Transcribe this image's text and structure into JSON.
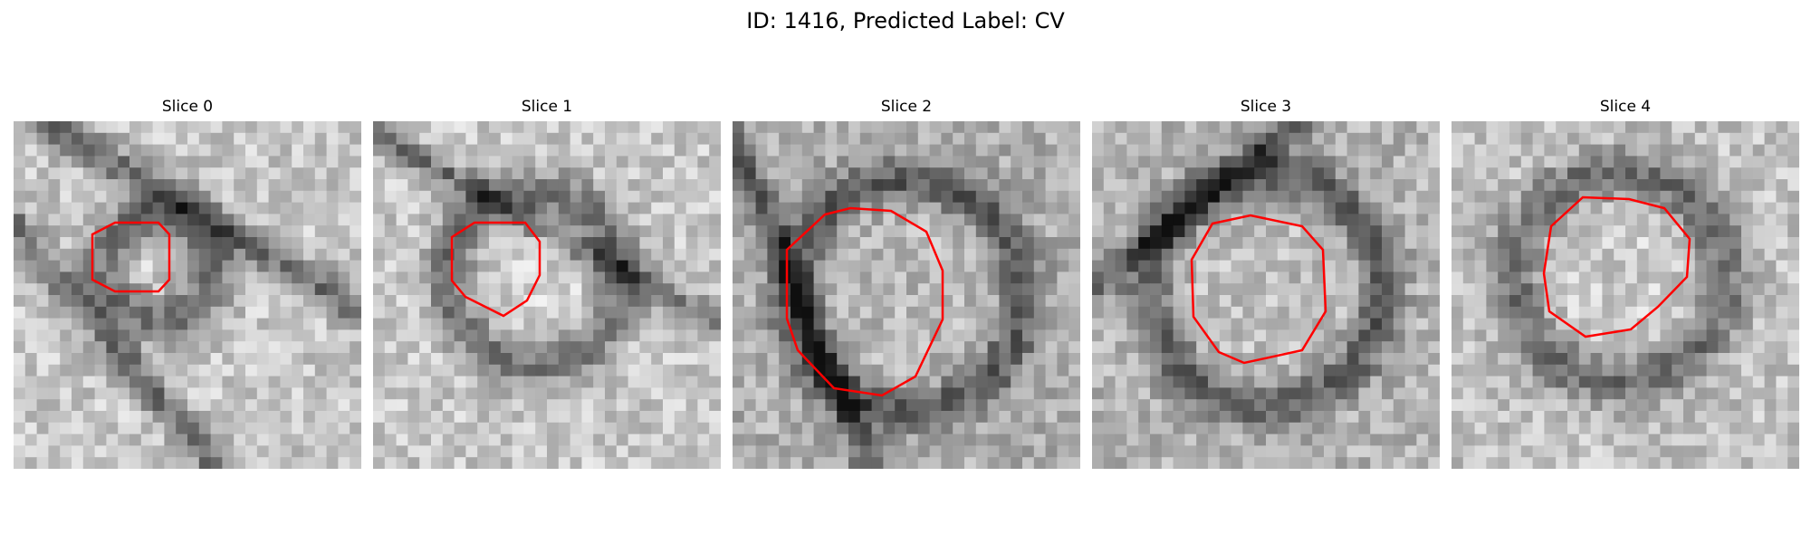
{
  "figure": {
    "title": "ID: 1416, Predicted Label: CV"
  },
  "panels": [
    {
      "title": "Slice 0"
    },
    {
      "title": "Slice 1"
    },
    {
      "title": "Slice 2"
    },
    {
      "title": "Slice 3"
    },
    {
      "title": "Slice 4"
    }
  ],
  "colors": {
    "contour": "#ff0000",
    "background": "#ffffff"
  }
}
